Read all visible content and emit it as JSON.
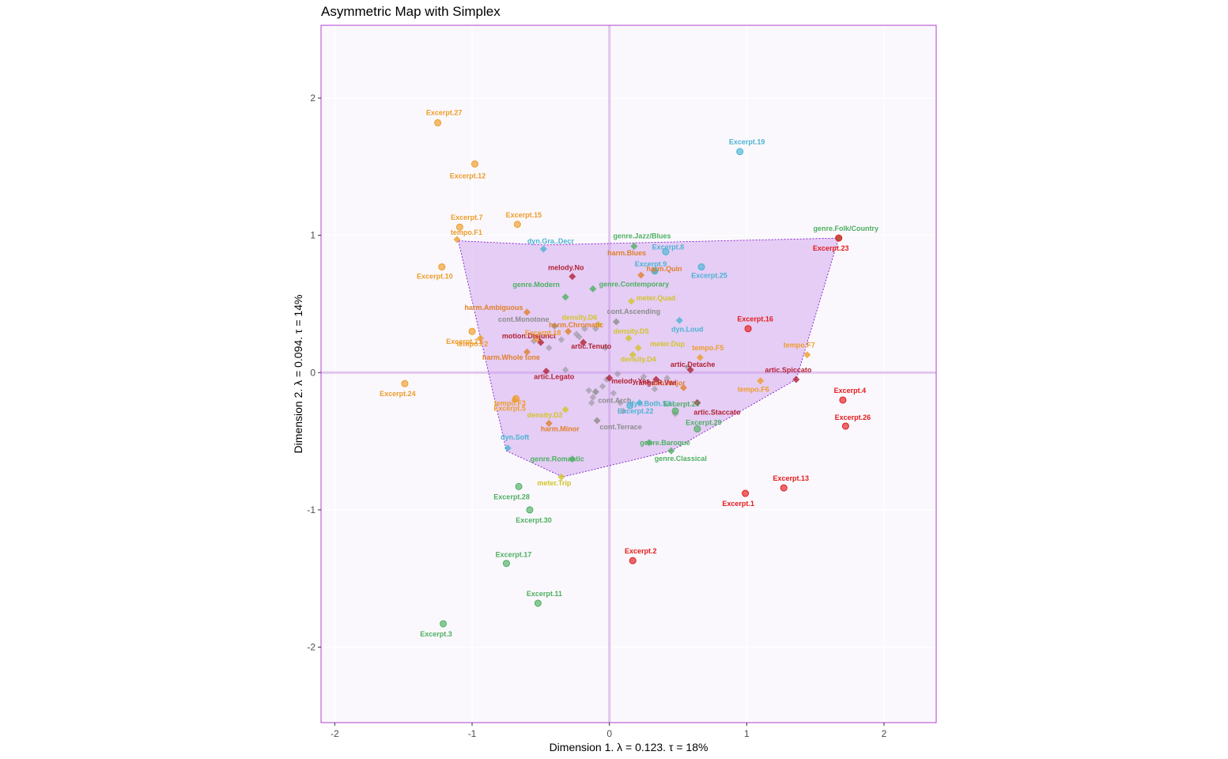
{
  "chart_data": {
    "type": "scatter",
    "title": "Asymmetric Map with Simplex",
    "xlabel": "Dimension 1.   λ = 0.123.  τ = 18%",
    "ylabel": "Dimension 2.   λ = 0.094.  τ = 14%",
    "xlim": [
      -2.1,
      2.38
    ],
    "ylim": [
      -2.55,
      2.53
    ],
    "xticks": [
      -2,
      -1,
      0,
      1,
      2
    ],
    "yticks": [
      -2,
      -1,
      0,
      1,
      2
    ],
    "grid": true,
    "legend": "none",
    "colors": {
      "orange": "#ee9c2a",
      "green": "#4daf62",
      "blue": "#4cb3d3",
      "red": "#e41a1c",
      "gold": "#d2c32a",
      "burnt": "#e0802a",
      "gray": "#8c8c8c",
      "darkred": "#b22234",
      "simplex_fill": "#cc99ee",
      "simplex_border": "#7700cc",
      "zero_lines": "#e0c6ee",
      "panel": "#faf8fc",
      "frame": "#b040d0"
    },
    "simplex": [
      [
        -1.1,
        0.96
      ],
      [
        -0.75,
        -0.57
      ],
      [
        -0.34,
        -0.76
      ],
      [
        0.45,
        -0.57
      ],
      [
        1.36,
        -0.05
      ],
      [
        1.67,
        0.98
      ],
      [
        -0.47,
        0.93
      ]
    ],
    "rows": [
      {
        "label": "Excerpt.27",
        "x": -1.25,
        "y": 1.82,
        "color": "orange"
      },
      {
        "label": "Excerpt.12",
        "x": -0.98,
        "y": 1.52,
        "color": "orange"
      },
      {
        "label": "Excerpt.7",
        "x": -1.09,
        "y": 1.06,
        "color": "orange"
      },
      {
        "label": "Excerpt.15",
        "x": -0.67,
        "y": 1.08,
        "color": "orange"
      },
      {
        "label": "Excerpt.10",
        "x": -1.22,
        "y": 0.77,
        "color": "orange"
      },
      {
        "label": "Excerpt.21",
        "x": -1.0,
        "y": 0.3,
        "color": "orange"
      },
      {
        "label": "Excerpt.18",
        "x": -0.53,
        "y": 0.25,
        "color": "orange"
      },
      {
        "label": "Excerpt.24",
        "x": -1.49,
        "y": -0.08,
        "color": "orange"
      },
      {
        "label": "Excerpt.5",
        "x": -0.68,
        "y": -0.19,
        "color": "orange"
      },
      {
        "label": "Excerpt.19",
        "x": 0.95,
        "y": 1.61,
        "color": "blue"
      },
      {
        "label": "Excerpt.8",
        "x": 0.41,
        "y": 0.88,
        "color": "blue"
      },
      {
        "label": "Excerpt.9",
        "x": 0.33,
        "y": 0.74,
        "color": "blue"
      },
      {
        "label": "Excerpt.25",
        "x": 0.67,
        "y": 0.77,
        "color": "blue"
      },
      {
        "label": "Excerpt.22",
        "x": 0.15,
        "y": -0.24,
        "color": "blue"
      },
      {
        "label": "Excerpt.20",
        "x": 0.48,
        "y": -0.28,
        "color": "green"
      },
      {
        "label": "Excerpt.29",
        "x": 0.64,
        "y": -0.41,
        "color": "green"
      },
      {
        "label": "Excerpt.28",
        "x": -0.66,
        "y": -0.83,
        "color": "green"
      },
      {
        "label": "Excerpt.30",
        "x": -0.58,
        "y": -1.0,
        "color": "green"
      },
      {
        "label": "Excerpt.17",
        "x": -0.75,
        "y": -1.39,
        "color": "green"
      },
      {
        "label": "Excerpt.11",
        "x": -0.52,
        "y": -1.68,
        "color": "green"
      },
      {
        "label": "Excerpt.3",
        "x": -1.21,
        "y": -1.83,
        "color": "green"
      },
      {
        "label": "Excerpt.16",
        "x": 1.01,
        "y": 0.32,
        "color": "red"
      },
      {
        "label": "Excerpt.23",
        "x": 1.67,
        "y": 0.98,
        "color": "red"
      },
      {
        "label": "Excerpt.4",
        "x": 1.7,
        "y": -0.2,
        "color": "red"
      },
      {
        "label": "Excerpt.26",
        "x": 1.72,
        "y": -0.39,
        "color": "red"
      },
      {
        "label": "Excerpt.13",
        "x": 1.27,
        "y": -0.84,
        "color": "red"
      },
      {
        "label": "Excerpt.1",
        "x": 0.99,
        "y": -0.88,
        "color": "red"
      },
      {
        "label": "Excerpt.2",
        "x": 0.17,
        "y": -1.37,
        "color": "red"
      }
    ],
    "columns": [
      {
        "label": "tempo.F1",
        "x": -1.11,
        "y": 0.97,
        "color": "orange"
      },
      {
        "label": "tempo.F2",
        "x": -0.94,
        "y": 0.25,
        "color": "orange"
      },
      {
        "label": "tempo.F3",
        "x": -0.69,
        "y": -0.2,
        "color": "orange"
      },
      {
        "label": "tempo.F5",
        "x": 0.66,
        "y": 0.11,
        "color": "orange"
      },
      {
        "label": "tempo.F6",
        "x": 1.1,
        "y": -0.06,
        "color": "orange"
      },
      {
        "label": "tempo.F7",
        "x": 1.44,
        "y": 0.13,
        "color": "orange"
      },
      {
        "label": "harm.Ambiguous",
        "x": -0.6,
        "y": 0.44,
        "color": "burnt"
      },
      {
        "label": "harm.Blues",
        "x": 0.23,
        "y": 0.71,
        "color": "burnt"
      },
      {
        "label": "harm.Quin",
        "x": 0.33,
        "y": 0.74,
        "color": "burnt"
      },
      {
        "label": "harm.Whole tone",
        "x": -0.6,
        "y": 0.15,
        "color": "burnt"
      },
      {
        "label": "harm.Chromatic",
        "x": -0.3,
        "y": 0.3,
        "color": "burnt"
      },
      {
        "label": "harm.Major",
        "x": 0.54,
        "y": -0.11,
        "color": "burnt"
      },
      {
        "label": "harm.Minor",
        "x": -0.44,
        "y": -0.37,
        "color": "burnt"
      },
      {
        "label": "melody.No",
        "x": -0.27,
        "y": 0.7,
        "color": "darkred"
      },
      {
        "label": "melody.Yes",
        "x": 0.0,
        "y": -0.04,
        "color": "darkred"
      },
      {
        "label": "motion.Disjunct",
        "x": -0.5,
        "y": 0.22,
        "color": "darkred"
      },
      {
        "label": "artic.Tenuto",
        "x": -0.19,
        "y": 0.22,
        "color": "darkred"
      },
      {
        "label": "artic.Legato",
        "x": -0.46,
        "y": 0.01,
        "color": "darkred"
      },
      {
        "label": "artic.Detache",
        "x": 0.59,
        "y": 0.02,
        "color": "darkred"
      },
      {
        "label": "artic.Spiccato",
        "x": 1.36,
        "y": -0.05,
        "color": "darkred"
      },
      {
        "label": "artic.Staccato",
        "x": 0.64,
        "y": -0.22,
        "color": "darkred"
      },
      {
        "label": "range.R.Vwi",
        "x": 0.34,
        "y": -0.05,
        "color": "darkred"
      },
      {
        "label": "meter.Quad",
        "x": 0.16,
        "y": 0.52,
        "color": "gold"
      },
      {
        "label": "meter.Dup",
        "x": 0.21,
        "y": 0.18,
        "color": "gold"
      },
      {
        "label": "meter.Trip",
        "x": -0.35,
        "y": -0.76,
        "color": "gold"
      },
      {
        "label": "density.D6",
        "x": -0.08,
        "y": 0.35,
        "color": "gold"
      },
      {
        "label": "density.D5",
        "x": 0.14,
        "y": 0.25,
        "color": "gold"
      },
      {
        "label": "density.D4",
        "x": 0.17,
        "y": 0.13,
        "color": "gold"
      },
      {
        "label": "density.D2",
        "x": -0.32,
        "y": -0.27,
        "color": "gold"
      },
      {
        "label": "genre.Jazz/Blues",
        "x": 0.18,
        "y": 0.92,
        "color": "green"
      },
      {
        "label": "genre.Folk/Country",
        "x": 1.67,
        "y": 0.98,
        "color": "green"
      },
      {
        "label": "genre.Contemporary",
        "x": -0.12,
        "y": 0.61,
        "color": "green"
      },
      {
        "label": "genre.Modern",
        "x": -0.32,
        "y": 0.55,
        "color": "green"
      },
      {
        "label": "genre.Baroque",
        "x": 0.29,
        "y": -0.51,
        "color": "green"
      },
      {
        "label": "genre.Romantic",
        "x": -0.27,
        "y": -0.63,
        "color": "green"
      },
      {
        "label": "genre.Classical",
        "x": 0.45,
        "y": -0.57,
        "color": "green"
      },
      {
        "label": "cont.Monotone",
        "x": -0.4,
        "y": 0.34,
        "color": "gray"
      },
      {
        "label": "cont.Ascending",
        "x": 0.05,
        "y": 0.37,
        "color": "gray"
      },
      {
        "label": "cont.Arch",
        "x": -0.1,
        "y": -0.14,
        "color": "gray"
      },
      {
        "label": "cont.Terrace",
        "x": -0.09,
        "y": -0.35,
        "color": "gray"
      },
      {
        "label": "dyn.Gra..Decr",
        "x": -0.48,
        "y": 0.9,
        "color": "blue"
      },
      {
        "label": "dyn.Loud",
        "x": 0.51,
        "y": 0.38,
        "color": "blue"
      },
      {
        "label": "dyn.Both.S&L",
        "x": 0.22,
        "y": -0.22,
        "color": "blue"
      },
      {
        "label": "dyn.Soft",
        "x": -0.74,
        "y": -0.55,
        "color": "blue"
      }
    ],
    "background_points": [
      [
        -0.55,
        0.23
      ],
      [
        -0.35,
        0.24
      ],
      [
        -0.24,
        0.28
      ],
      [
        -0.1,
        0.32
      ],
      [
        -0.18,
        0.32
      ],
      [
        -0.03,
        0.18
      ],
      [
        0.06,
        -0.01
      ],
      [
        -0.15,
        -0.13
      ],
      [
        -0.12,
        -0.18
      ],
      [
        -0.13,
        -0.22
      ],
      [
        -0.05,
        -0.1
      ],
      [
        -0.02,
        -0.05
      ],
      [
        0.03,
        -0.15
      ],
      [
        0.08,
        -0.22
      ],
      [
        0.33,
        -0.12
      ],
      [
        0.48,
        -0.3
      ],
      [
        0.25,
        -0.03
      ],
      [
        0.1,
        -0.28
      ],
      [
        -0.44,
        0.18
      ],
      [
        -0.32,
        0.02
      ],
      [
        0.57,
        0.04
      ],
      [
        -0.22,
        0.26
      ],
      [
        0.42,
        -0.04
      ]
    ]
  }
}
